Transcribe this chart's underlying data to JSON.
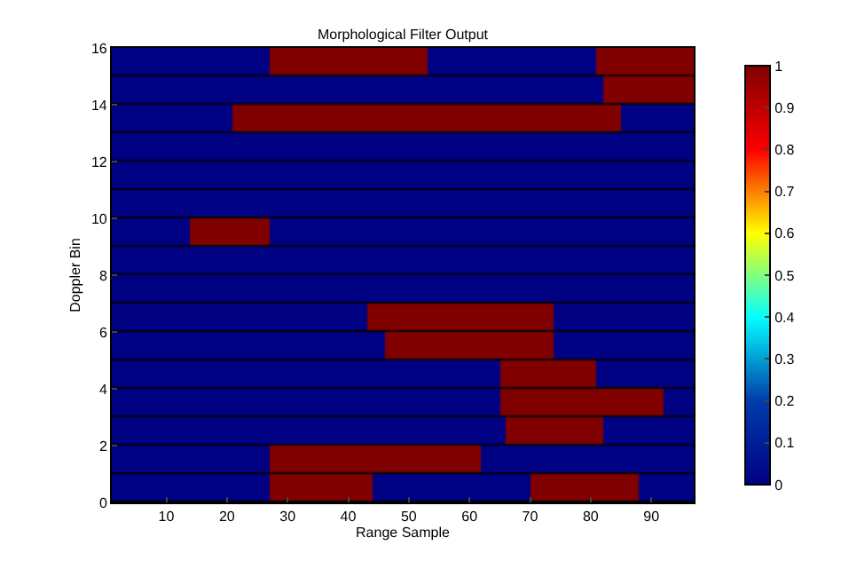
{
  "chart_data": {
    "type": "heatmap",
    "title": "Morphological Filter Output",
    "xlabel": "Range Sample",
    "ylabel": "Doppler Bin",
    "xlim": [
      1,
      97
    ],
    "ylim": [
      0,
      16
    ],
    "xticks": [
      10,
      20,
      30,
      40,
      50,
      60,
      70,
      80,
      90
    ],
    "yticks": [
      0,
      2,
      4,
      6,
      8,
      10,
      12,
      14,
      16
    ],
    "clim": [
      0,
      1
    ],
    "cticks": [
      0,
      0.1,
      0.2,
      0.3,
      0.4,
      0.5,
      0.6,
      0.7,
      0.8,
      0.9,
      1
    ],
    "cells": [
      [
        0,
        0,
        0,
        0,
        0,
        0,
        0,
        0,
        0,
        0,
        0,
        0,
        0,
        0,
        0,
        0,
        0,
        0,
        0,
        0,
        0,
        0,
        0,
        0,
        0,
        0,
        1,
        1,
        1,
        1,
        1,
        1,
        1,
        1,
        1,
        1,
        1,
        1,
        1,
        1,
        1,
        1,
        1,
        1,
        1,
        1,
        1,
        1,
        1,
        1,
        1,
        1,
        0,
        0,
        0,
        0,
        0,
        0,
        0,
        0,
        0,
        0,
        0,
        0,
        0,
        0,
        0,
        0,
        0,
        0,
        0,
        0,
        0,
        0,
        0,
        0,
        0,
        0,
        0,
        0,
        1,
        1,
        1,
        1,
        1,
        1,
        1,
        1,
        1,
        1,
        1,
        1,
        1,
        1,
        1,
        1
      ],
      [
        0,
        0,
        0,
        0,
        0,
        0,
        0,
        0,
        0,
        0,
        0,
        0,
        0,
        0,
        0,
        0,
        0,
        0,
        0,
        0,
        0,
        0,
        0,
        0,
        0,
        0,
        0,
        0,
        0,
        0,
        0,
        0,
        0,
        0,
        0,
        0,
        0,
        0,
        0,
        0,
        0,
        0,
        0,
        0,
        0,
        0,
        0,
        0,
        0,
        0,
        0,
        0,
        0,
        0,
        0,
        0,
        0,
        0,
        0,
        0,
        0,
        0,
        0,
        0,
        0,
        0,
        0,
        0,
        0,
        0,
        0,
        0,
        0,
        0,
        0,
        0,
        0,
        0,
        0,
        0,
        0,
        1,
        1,
        1,
        1,
        1,
        1,
        1,
        1,
        1,
        1,
        1,
        1,
        1,
        1,
        1
      ],
      [
        0,
        0,
        0,
        0,
        0,
        0,
        0,
        0,
        0,
        0,
        0,
        0,
        0,
        0,
        0,
        0,
        0,
        0,
        0,
        0,
        1,
        1,
        1,
        1,
        1,
        1,
        1,
        1,
        1,
        1,
        1,
        1,
        1,
        1,
        1,
        1,
        1,
        1,
        1,
        1,
        1,
        1,
        1,
        1,
        1,
        1,
        1,
        1,
        1,
        1,
        1,
        1,
        1,
        1,
        1,
        1,
        1,
        1,
        1,
        1,
        1,
        1,
        1,
        1,
        1,
        1,
        1,
        1,
        1,
        1,
        1,
        1,
        1,
        1,
        1,
        1,
        1,
        1,
        1,
        1,
        1,
        1,
        1,
        1,
        0,
        0,
        0,
        0,
        0,
        0,
        0,
        0,
        0,
        0,
        0,
        0
      ],
      [
        0,
        0,
        0,
        0,
        0,
        0,
        0,
        0,
        0,
        0,
        0,
        0,
        0,
        0,
        0,
        0,
        0,
        0,
        0,
        0,
        0,
        0,
        0,
        0,
        0,
        0,
        0,
        0,
        0,
        0,
        0,
        0,
        0,
        0,
        0,
        0,
        0,
        0,
        0,
        0,
        0,
        0,
        0,
        0,
        0,
        0,
        0,
        0,
        0,
        0,
        0,
        0,
        0,
        0,
        0,
        0,
        0,
        0,
        0,
        0,
        0,
        0,
        0,
        0,
        0,
        0,
        0,
        0,
        0,
        0,
        0,
        0,
        0,
        0,
        0,
        0,
        0,
        0,
        0,
        0,
        0,
        0,
        0,
        0,
        0,
        0,
        0,
        0,
        0,
        0,
        0,
        0,
        0,
        0,
        0,
        0
      ],
      [
        0,
        0,
        0,
        0,
        0,
        0,
        0,
        0,
        0,
        0,
        0,
        0,
        0,
        0,
        0,
        0,
        0,
        0,
        0,
        0,
        0,
        0,
        0,
        0,
        0,
        0,
        0,
        0,
        0,
        0,
        0,
        0,
        0,
        0,
        0,
        0,
        0,
        0,
        0,
        0,
        0,
        0,
        0,
        0,
        0,
        0,
        0,
        0,
        0,
        0,
        0,
        0,
        0,
        0,
        0,
        0,
        0,
        0,
        0,
        0,
        0,
        0,
        0,
        0,
        0,
        0,
        0,
        0,
        0,
        0,
        0,
        0,
        0,
        0,
        0,
        0,
        0,
        0,
        0,
        0,
        0,
        0,
        0,
        0,
        0,
        0,
        0,
        0,
        0,
        0,
        0,
        0,
        0,
        0,
        0,
        0
      ],
      [
        0,
        0,
        0,
        0,
        0,
        0,
        0,
        0,
        0,
        0,
        0,
        0,
        0,
        0,
        0,
        0,
        0,
        0,
        0,
        0,
        0,
        0,
        0,
        0,
        0,
        0,
        0,
        0,
        0,
        0,
        0,
        0,
        0,
        0,
        0,
        0,
        0,
        0,
        0,
        0,
        0,
        0,
        0,
        0,
        0,
        0,
        0,
        0,
        0,
        0,
        0,
        0,
        0,
        0,
        0,
        0,
        0,
        0,
        0,
        0,
        0,
        0,
        0,
        0,
        0,
        0,
        0,
        0,
        0,
        0,
        0,
        0,
        0,
        0,
        0,
        0,
        0,
        0,
        0,
        0,
        0,
        0,
        0,
        0,
        0,
        0,
        0,
        0,
        0,
        0,
        0,
        0,
        0,
        0,
        0,
        0
      ],
      [
        0,
        0,
        0,
        0,
        0,
        0,
        0,
        0,
        0,
        0,
        0,
        0,
        0,
        1,
        1,
        1,
        1,
        1,
        1,
        1,
        1,
        1,
        1,
        1,
        1,
        1,
        0,
        0,
        0,
        0,
        0,
        0,
        0,
        0,
        0,
        0,
        0,
        0,
        0,
        0,
        0,
        0,
        0,
        0,
        0,
        0,
        0,
        0,
        0,
        0,
        0,
        0,
        0,
        0,
        0,
        0,
        0,
        0,
        0,
        0,
        0,
        0,
        0,
        0,
        0,
        0,
        0,
        0,
        0,
        0,
        0,
        0,
        0,
        0,
        0,
        0,
        0,
        0,
        0,
        0,
        0,
        0,
        0,
        0,
        0,
        0,
        0,
        0,
        0,
        0,
        0,
        0,
        0,
        0,
        0,
        0
      ],
      [
        0,
        0,
        0,
        0,
        0,
        0,
        0,
        0,
        0,
        0,
        0,
        0,
        0,
        0,
        0,
        0,
        0,
        0,
        0,
        0,
        0,
        0,
        0,
        0,
        0,
        0,
        0,
        0,
        0,
        0,
        0,
        0,
        0,
        0,
        0,
        0,
        0,
        0,
        0,
        0,
        0,
        0,
        0,
        0,
        0,
        0,
        0,
        0,
        0,
        0,
        0,
        0,
        0,
        0,
        0,
        0,
        0,
        0,
        0,
        0,
        0,
        0,
        0,
        0,
        0,
        0,
        0,
        0,
        0,
        0,
        0,
        0,
        0,
        0,
        0,
        0,
        0,
        0,
        0,
        0,
        0,
        0,
        0,
        0,
        0,
        0,
        0,
        0,
        0,
        0,
        0,
        0,
        0,
        0,
        0,
        0
      ],
      [
        0,
        0,
        0,
        0,
        0,
        0,
        0,
        0,
        0,
        0,
        0,
        0,
        0,
        0,
        0,
        0,
        0,
        0,
        0,
        0,
        0,
        0,
        0,
        0,
        0,
        0,
        0,
        0,
        0,
        0,
        0,
        0,
        0,
        0,
        0,
        0,
        0,
        0,
        0,
        0,
        0,
        0,
        0,
        0,
        0,
        0,
        0,
        0,
        0,
        0,
        0,
        0,
        0,
        0,
        0,
        0,
        0,
        0,
        0,
        0,
        0,
        0,
        0,
        0,
        0,
        0,
        0,
        0,
        0,
        0,
        0,
        0,
        0,
        0,
        0,
        0,
        0,
        0,
        0,
        0,
        0,
        0,
        0,
        0,
        0,
        0,
        0,
        0,
        0,
        0,
        0,
        0,
        0,
        0,
        0,
        0
      ],
      [
        0,
        0,
        0,
        0,
        0,
        0,
        0,
        0,
        0,
        0,
        0,
        0,
        0,
        0,
        0,
        0,
        0,
        0,
        0,
        0,
        0,
        0,
        0,
        0,
        0,
        0,
        0,
        0,
        0,
        0,
        0,
        0,
        0,
        0,
        0,
        0,
        0,
        0,
        0,
        0,
        0,
        0,
        1,
        1,
        1,
        1,
        1,
        1,
        1,
        1,
        1,
        1,
        1,
        1,
        1,
        1,
        1,
        1,
        1,
        1,
        1,
        1,
        1,
        1,
        1,
        1,
        1,
        1,
        1,
        1,
        1,
        1,
        1,
        0,
        0,
        0,
        0,
        0,
        0,
        0,
        0,
        0,
        0,
        0,
        0,
        0,
        0,
        0,
        0,
        0,
        0,
        0,
        0,
        0,
        0,
        0
      ],
      [
        0,
        0,
        0,
        0,
        0,
        0,
        0,
        0,
        0,
        0,
        0,
        0,
        0,
        0,
        0,
        0,
        0,
        0,
        0,
        0,
        0,
        0,
        0,
        0,
        0,
        0,
        0,
        0,
        0,
        0,
        0,
        0,
        0,
        0,
        0,
        0,
        0,
        0,
        0,
        0,
        0,
        0,
        0,
        0,
        0,
        1,
        1,
        1,
        1,
        1,
        1,
        1,
        1,
        1,
        1,
        1,
        1,
        1,
        1,
        1,
        1,
        1,
        1,
        1,
        1,
        1,
        1,
        1,
        1,
        1,
        1,
        1,
        1,
        0,
        0,
        0,
        0,
        0,
        0,
        0,
        0,
        0,
        0,
        0,
        0,
        0,
        0,
        0,
        0,
        0,
        0,
        0,
        0,
        0,
        0,
        0
      ],
      [
        0,
        0,
        0,
        0,
        0,
        0,
        0,
        0,
        0,
        0,
        0,
        0,
        0,
        0,
        0,
        0,
        0,
        0,
        0,
        0,
        0,
        0,
        0,
        0,
        0,
        0,
        0,
        0,
        0,
        0,
        0,
        0,
        0,
        0,
        0,
        0,
        0,
        0,
        0,
        0,
        0,
        0,
        0,
        0,
        0,
        0,
        0,
        0,
        0,
        0,
        0,
        0,
        0,
        0,
        0,
        0,
        0,
        0,
        0,
        0,
        0,
        0,
        0,
        0,
        1,
        1,
        1,
        1,
        1,
        1,
        1,
        1,
        1,
        1,
        1,
        1,
        1,
        1,
        1,
        1,
        0,
        0,
        0,
        0,
        0,
        0,
        0,
        0,
        0,
        0,
        0,
        0,
        0,
        0,
        0,
        0
      ],
      [
        0,
        0,
        0,
        0,
        0,
        0,
        0,
        0,
        0,
        0,
        0,
        0,
        0,
        0,
        0,
        0,
        0,
        0,
        0,
        0,
        0,
        0,
        0,
        0,
        0,
        0,
        0,
        0,
        0,
        0,
        0,
        0,
        0,
        0,
        0,
        0,
        0,
        0,
        0,
        0,
        0,
        0,
        0,
        0,
        0,
        0,
        0,
        0,
        0,
        0,
        0,
        0,
        0,
        0,
        0,
        0,
        0,
        0,
        0,
        0,
        0,
        0,
        0,
        0,
        1,
        1,
        1,
        1,
        1,
        1,
        1,
        1,
        1,
        1,
        1,
        1,
        1,
        1,
        1,
        1,
        1,
        1,
        1,
        1,
        1,
        1,
        1,
        1,
        1,
        1,
        1,
        0,
        0,
        0,
        0,
        0
      ],
      [
        0,
        0,
        0,
        0,
        0,
        0,
        0,
        0,
        0,
        0,
        0,
        0,
        0,
        0,
        0,
        0,
        0,
        0,
        0,
        0,
        0,
        0,
        0,
        0,
        0,
        0,
        0,
        0,
        0,
        0,
        0,
        0,
        0,
        0,
        0,
        0,
        0,
        0,
        0,
        0,
        0,
        0,
        0,
        0,
        0,
        0,
        0,
        0,
        0,
        0,
        0,
        0,
        0,
        0,
        0,
        0,
        0,
        0,
        0,
        0,
        0,
        0,
        0,
        0,
        0,
        1,
        1,
        1,
        1,
        1,
        1,
        1,
        1,
        1,
        1,
        1,
        1,
        1,
        1,
        1,
        1,
        0,
        0,
        0,
        0,
        0,
        0,
        0,
        0,
        0,
        0,
        0,
        0,
        0,
        0,
        0
      ],
      [
        0,
        0,
        0,
        0,
        0,
        0,
        0,
        0,
        0,
        0,
        0,
        0,
        0,
        0,
        0,
        0,
        0,
        0,
        0,
        0,
        0,
        0,
        0,
        0,
        0,
        0,
        1,
        1,
        1,
        1,
        1,
        1,
        1,
        1,
        1,
        1,
        1,
        1,
        1,
        1,
        1,
        1,
        1,
        1,
        1,
        1,
        1,
        1,
        1,
        1,
        1,
        1,
        1,
        1,
        1,
        1,
        1,
        1,
        1,
        1,
        1,
        0,
        0,
        0,
        0,
        0,
        0,
        0,
        0,
        0,
        0,
        0,
        0,
        0,
        0,
        0,
        0,
        0,
        0,
        0,
        0,
        0,
        0,
        0,
        0,
        0,
        0,
        0,
        0,
        0,
        0,
        0,
        0,
        0,
        0,
        0
      ],
      [
        0,
        0,
        0,
        0,
        0,
        0,
        0,
        0,
        0,
        0,
        0,
        0,
        0,
        0,
        0,
        0,
        0,
        0,
        0,
        0,
        0,
        0,
        0,
        0,
        0,
        0,
        1,
        1,
        1,
        1,
        1,
        1,
        1,
        1,
        1,
        1,
        1,
        1,
        1,
        1,
        1,
        1,
        1,
        0,
        0,
        0,
        0,
        0,
        0,
        0,
        0,
        0,
        0,
        0,
        0,
        0,
        0,
        0,
        0,
        0,
        0,
        0,
        0,
        0,
        0,
        0,
        0,
        0,
        0,
        1,
        1,
        1,
        1,
        1,
        1,
        1,
        1,
        1,
        1,
        1,
        1,
        1,
        1,
        1,
        1,
        1,
        1,
        0,
        0,
        0,
        0,
        0,
        0,
        0,
        0,
        0
      ]
    ]
  }
}
